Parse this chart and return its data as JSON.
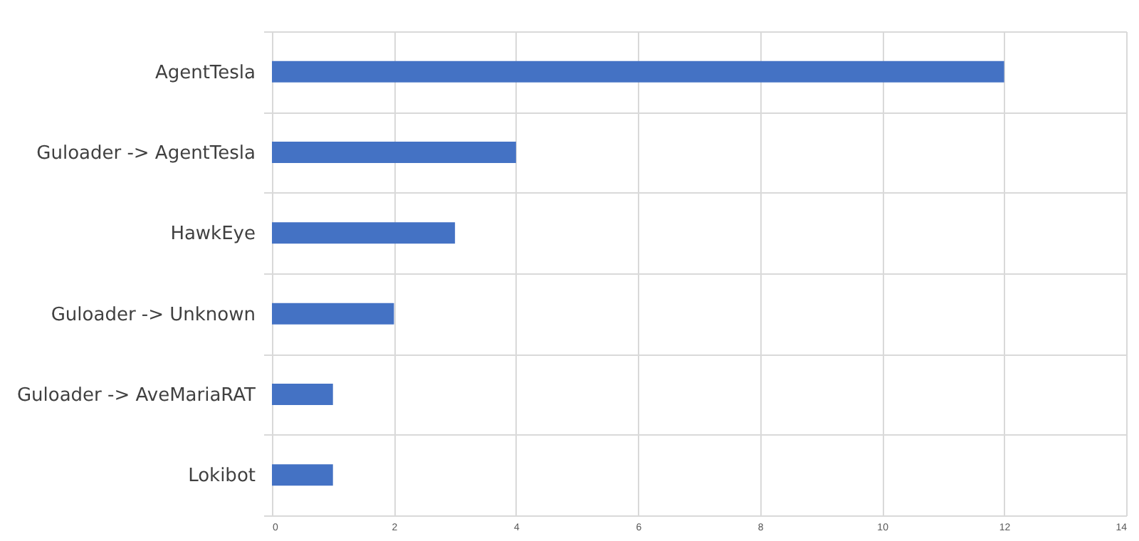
{
  "chart_data": {
    "type": "bar",
    "orientation": "horizontal",
    "categories": [
      "AgentTesla",
      "Guloader -> AgentTesla",
      "HawkEye",
      "Guloader -> Unknown",
      "Guloader -> AveMariaRAT",
      "Lokibot"
    ],
    "values": [
      12,
      4,
      3,
      2,
      1,
      1
    ],
    "color": "#4472c4",
    "xlim": [
      0,
      14
    ],
    "xticks": [
      0,
      2,
      4,
      6,
      8,
      10,
      12,
      14
    ],
    "grid": true
  }
}
